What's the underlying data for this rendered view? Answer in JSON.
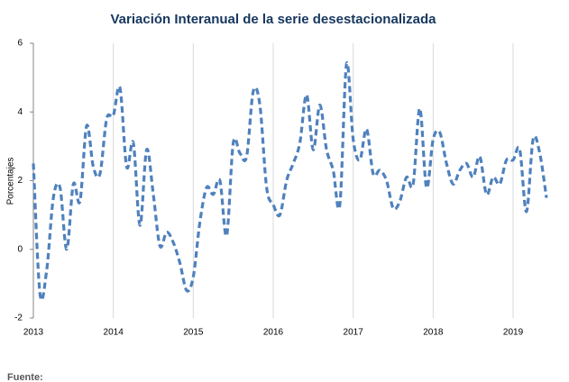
{
  "chart_data": {
    "type": "line",
    "subtitle": "Variación Interanual de la serie desestacionalizada",
    "ylabel": "Porcentajes",
    "source": "Fuente:",
    "x": [
      2013,
      2013.083,
      2013.167,
      2013.25,
      2013.333,
      2013.417,
      2013.5,
      2013.583,
      2013.667,
      2013.75,
      2013.833,
      2013.917,
      2014,
      2014.083,
      2014.167,
      2014.25,
      2014.333,
      2014.417,
      2014.5,
      2014.583,
      2014.667,
      2014.75,
      2014.833,
      2014.917,
      2015,
      2015.083,
      2015.167,
      2015.25,
      2015.333,
      2015.417,
      2015.5,
      2015.583,
      2015.667,
      2015.75,
      2015.833,
      2015.917,
      2016,
      2016.083,
      2016.167,
      2016.25,
      2016.333,
      2016.417,
      2016.5,
      2016.583,
      2016.667,
      2016.75,
      2016.833,
      2016.917,
      2017,
      2017.083,
      2017.167,
      2017.25,
      2017.333,
      2017.417,
      2017.5,
      2017.583,
      2017.667,
      2017.75,
      2017.833,
      2017.917,
      2018,
      2018.083,
      2018.167,
      2018.25,
      2018.333,
      2018.417,
      2018.5,
      2018.583,
      2018.667,
      2018.75,
      2018.833,
      2018.917,
      2019,
      2019.083,
      2019.167,
      2019.25,
      2019.333,
      2019.417
    ],
    "series": [
      {
        "color": "#4f81bd",
        "values": [
          2.5,
          -1.3,
          -0.6,
          1.5,
          1.8,
          0.0,
          1.9,
          1.4,
          3.6,
          2.4,
          2.2,
          3.8,
          3.9,
          4.7,
          2.4,
          3.1,
          0.7,
          2.9,
          1.6,
          0.1,
          0.5,
          0.2,
          -0.4,
          -1.2,
          -0.8,
          0.8,
          1.8,
          1.6,
          2.0,
          0.4,
          3.1,
          2.8,
          2.7,
          4.6,
          4.2,
          1.8,
          1.3,
          1.0,
          2.0,
          2.5,
          3.1,
          4.5,
          2.9,
          4.2,
          2.9,
          2.3,
          1.3,
          5.4,
          3.2,
          2.6,
          3.5,
          2.2,
          2.3,
          2.0,
          1.2,
          1.4,
          2.1,
          1.9,
          4.1,
          1.8,
          3.2,
          3.4,
          2.5,
          1.9,
          2.3,
          2.5,
          2.1,
          2.7,
          1.6,
          2.1,
          1.9,
          2.6,
          2.6,
          2.9,
          1.1,
          3.2,
          2.8,
          1.5
        ]
      }
    ],
    "xlim": [
      2013,
      2019.45
    ],
    "xticks": [
      2013,
      2014,
      2015,
      2016,
      2017,
      2018,
      2019
    ],
    "ylim": [
      -2,
      6
    ],
    "yticks": [
      -2,
      0,
      2,
      4,
      6
    ],
    "grid": true,
    "dashed": true
  }
}
